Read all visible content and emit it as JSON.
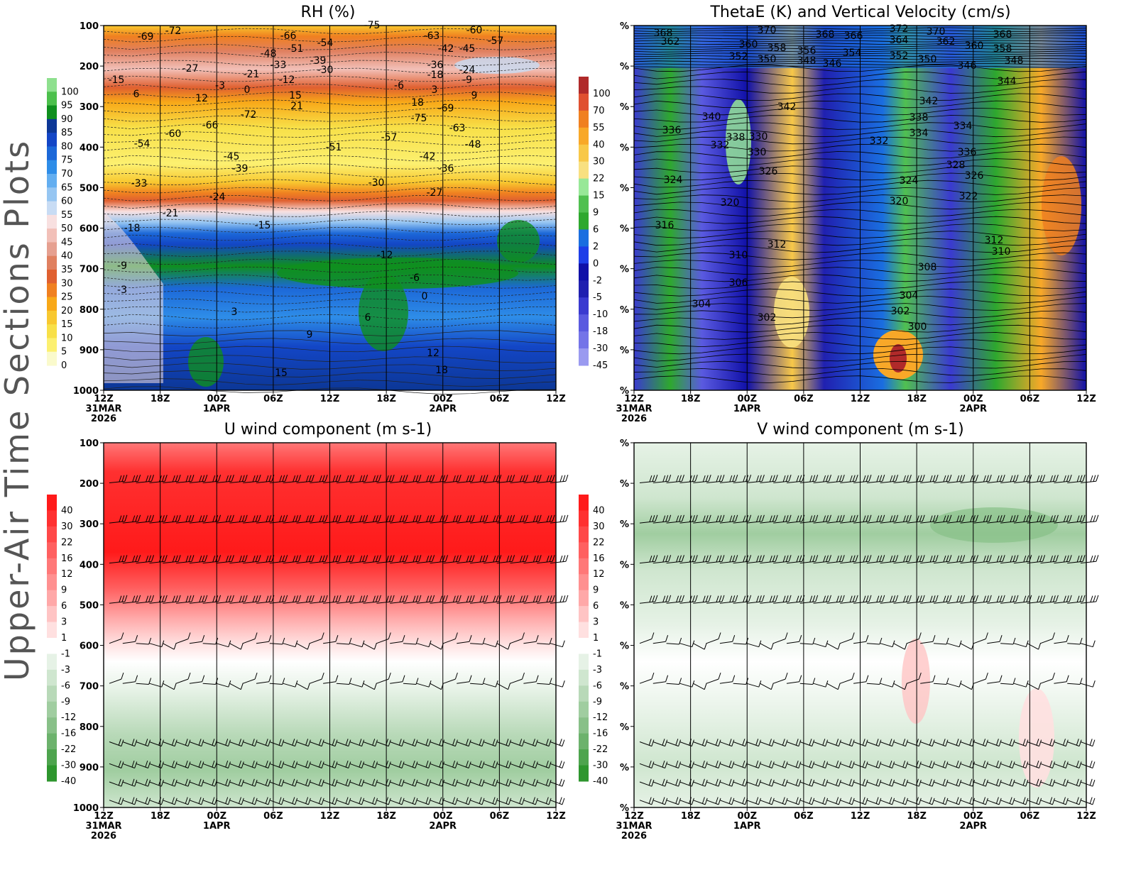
{
  "page": {
    "side_title": "Upper-Air Time Sections Plots",
    "background": "#ffffff"
  },
  "time_axis": {
    "ticks": [
      {
        "top": "12Z",
        "mid": "31MAR",
        "bot": "2026"
      },
      {
        "top": "18Z",
        "mid": "",
        "bot": ""
      },
      {
        "top": "00Z",
        "mid": "1APR",
        "bot": ""
      },
      {
        "top": "06Z",
        "mid": "",
        "bot": ""
      },
      {
        "top": "12Z",
        "mid": "",
        "bot": ""
      },
      {
        "top": "18Z",
        "mid": "",
        "bot": ""
      },
      {
        "top": "00Z",
        "mid": "2APR",
        "bot": ""
      },
      {
        "top": "06Z",
        "mid": "",
        "bot": ""
      },
      {
        "top": "12Z",
        "mid": "",
        "bot": ""
      }
    ]
  },
  "chart_data": [
    {
      "id": "rh",
      "type": "heatmap",
      "title": "RH (%)",
      "y_axis_labels": [
        "100",
        "200",
        "300",
        "400",
        "500",
        "600",
        "700",
        "800",
        "900",
        "1000"
      ],
      "ylim": [
        1000,
        100
      ],
      "colorbar": {
        "labels": [
          "100",
          "95",
          "90",
          "85",
          "80",
          "75",
          "70",
          "65",
          "60",
          "55",
          "50",
          "45",
          "40",
          "35",
          "30",
          "25",
          "20",
          "15",
          "10",
          "5",
          "0"
        ],
        "colors": [
          "#8ee08e",
          "#4cc04c",
          "#0f8f1e",
          "#0c3796",
          "#1346c6",
          "#1c68d8",
          "#2e8de8",
          "#63aef0",
          "#96c6f2",
          "#c8dcf4",
          "#f8e0e0",
          "#f2c0b8",
          "#e6a090",
          "#e08060",
          "#e06030",
          "#f08020",
          "#f8a818",
          "#f8c830",
          "#f8e048",
          "#fcf070",
          "#fafacc"
        ]
      },
      "contours": [
        {
          "label": "-69"
        },
        {
          "label": "-72"
        },
        {
          "label": "-75"
        },
        {
          "label": "-66"
        },
        {
          "label": "-63"
        },
        {
          "label": "-60"
        },
        {
          "label": "-57"
        },
        {
          "label": "-54"
        },
        {
          "label": "-51"
        },
        {
          "label": "-48"
        },
        {
          "label": "-45"
        },
        {
          "label": "-42"
        },
        {
          "label": "-39"
        },
        {
          "label": "-36"
        },
        {
          "label": "-33"
        },
        {
          "label": "-30"
        },
        {
          "label": "-27"
        },
        {
          "label": "-24"
        },
        {
          "label": "-21"
        },
        {
          "label": "-18"
        },
        {
          "label": "-15"
        },
        {
          "label": "-12"
        },
        {
          "label": "-9"
        },
        {
          "label": "-6"
        },
        {
          "label": "-3"
        },
        {
          "label": "0"
        },
        {
          "label": "3"
        },
        {
          "label": "6"
        },
        {
          "label": "9"
        },
        {
          "label": "12"
        },
        {
          "label": "15"
        },
        {
          "label": "18"
        },
        {
          "label": "21"
        }
      ]
    },
    {
      "id": "thetae",
      "type": "heatmap",
      "title": "ThetaE (K) and Vertical Velocity (cm/s)",
      "y_axis_labels": [
        "%",
        "%",
        "%",
        "%",
        "%",
        "%",
        "%",
        "%",
        "%",
        "%"
      ],
      "colorbar": {
        "labels": [
          "100",
          "70",
          "55",
          "40",
          "30",
          "22",
          "15",
          "9",
          "6",
          "2",
          "0",
          "-2",
          "-5",
          "-10",
          "-18",
          "-30",
          "-45"
        ],
        "colors": [
          "#b02a2a",
          "#e05030",
          "#f08020",
          "#f8a828",
          "#f8c848",
          "#f8e080",
          "#98e898",
          "#50c050",
          "#2ea82e",
          "#1a6ee0",
          "#1e3ee8",
          "#1010a8",
          "#2020b0",
          "#3a3ad0",
          "#5a5ae0",
          "#7474e8",
          "#9a9af0"
        ]
      },
      "contours": [
        {
          "label": "368"
        },
        {
          "label": "362"
        },
        {
          "label": "370"
        },
        {
          "label": "360"
        },
        {
          "label": "358"
        },
        {
          "label": "352"
        },
        {
          "label": "350"
        },
        {
          "label": "356"
        },
        {
          "label": "348"
        },
        {
          "label": "368"
        },
        {
          "label": "366"
        },
        {
          "label": "354"
        },
        {
          "label": "346"
        },
        {
          "label": "372"
        },
        {
          "label": "364"
        },
        {
          "label": "352"
        },
        {
          "label": "350"
        },
        {
          "label": "370"
        },
        {
          "label": "362"
        },
        {
          "label": "360"
        },
        {
          "label": "346"
        },
        {
          "label": "368"
        },
        {
          "label": "358"
        },
        {
          "label": "348"
        },
        {
          "label": "344"
        },
        {
          "label": "342"
        },
        {
          "label": "342"
        },
        {
          "label": "340"
        },
        {
          "label": "338"
        },
        {
          "label": "336"
        },
        {
          "label": "334"
        },
        {
          "label": "332"
        },
        {
          "label": "338"
        },
        {
          "label": "334"
        },
        {
          "label": "336"
        },
        {
          "label": "330"
        },
        {
          "label": "332"
        },
        {
          "label": "330"
        },
        {
          "label": "328"
        },
        {
          "label": "326"
        },
        {
          "label": "326"
        },
        {
          "label": "324"
        },
        {
          "label": "324"
        },
        {
          "label": "322"
        },
        {
          "label": "320"
        },
        {
          "label": "320"
        },
        {
          "label": "316"
        },
        {
          "label": "312"
        },
        {
          "label": "312"
        },
        {
          "label": "310"
        },
        {
          "label": "310"
        },
        {
          "label": "308"
        },
        {
          "label": "306"
        },
        {
          "label": "304"
        },
        {
          "label": "304"
        },
        {
          "label": "302"
        },
        {
          "label": "302"
        },
        {
          "label": "300"
        }
      ]
    },
    {
      "id": "uwind",
      "type": "heatmap",
      "title": "U wind component (m s-1)",
      "y_axis_labels": [
        "100",
        "200",
        "300",
        "400",
        "500",
        "600",
        "700",
        "800",
        "900",
        "1000"
      ],
      "ylim": [
        1000,
        100
      ],
      "colorbar": {
        "labels": [
          "40",
          "30",
          "22",
          "16",
          "12",
          "9",
          "6",
          "3",
          "1",
          "-1",
          "-3",
          "-6",
          "-9",
          "-12",
          "-16",
          "-22",
          "-30",
          "-40"
        ],
        "colors": [
          "#ff1a1a",
          "#ff3030",
          "#ff4848",
          "#ff6060",
          "#ff7878",
          "#ff9090",
          "#ffa8a8",
          "#ffc4c4",
          "#ffe0e0",
          "#ffffff",
          "#e6f2e6",
          "#cfe6cf",
          "#b8d9b8",
          "#a0cda0",
          "#88c088",
          "#6cb26c",
          "#4ea44e",
          "#2e962e"
        ]
      }
    },
    {
      "id": "vwind",
      "type": "heatmap",
      "title": "V wind component (m s-1)",
      "y_axis_labels": [
        "%",
        "%",
        "%",
        "%",
        "%",
        "%",
        "%",
        "%",
        "%",
        "%"
      ],
      "colorbar": {
        "labels": [
          "40",
          "30",
          "22",
          "16",
          "12",
          "9",
          "6",
          "3",
          "1",
          "-1",
          "-3",
          "-6",
          "-9",
          "-12",
          "-16",
          "-22",
          "-30",
          "-40"
        ],
        "colors": [
          "#ff1a1a",
          "#ff3030",
          "#ff4848",
          "#ff6060",
          "#ff7878",
          "#ff9090",
          "#ffa8a8",
          "#ffc4c4",
          "#ffe0e0",
          "#ffffff",
          "#e6f2e6",
          "#cfe6cf",
          "#b8d9b8",
          "#a0cda0",
          "#88c088",
          "#6cb26c",
          "#4ea44e",
          "#2e962e"
        ]
      }
    }
  ]
}
